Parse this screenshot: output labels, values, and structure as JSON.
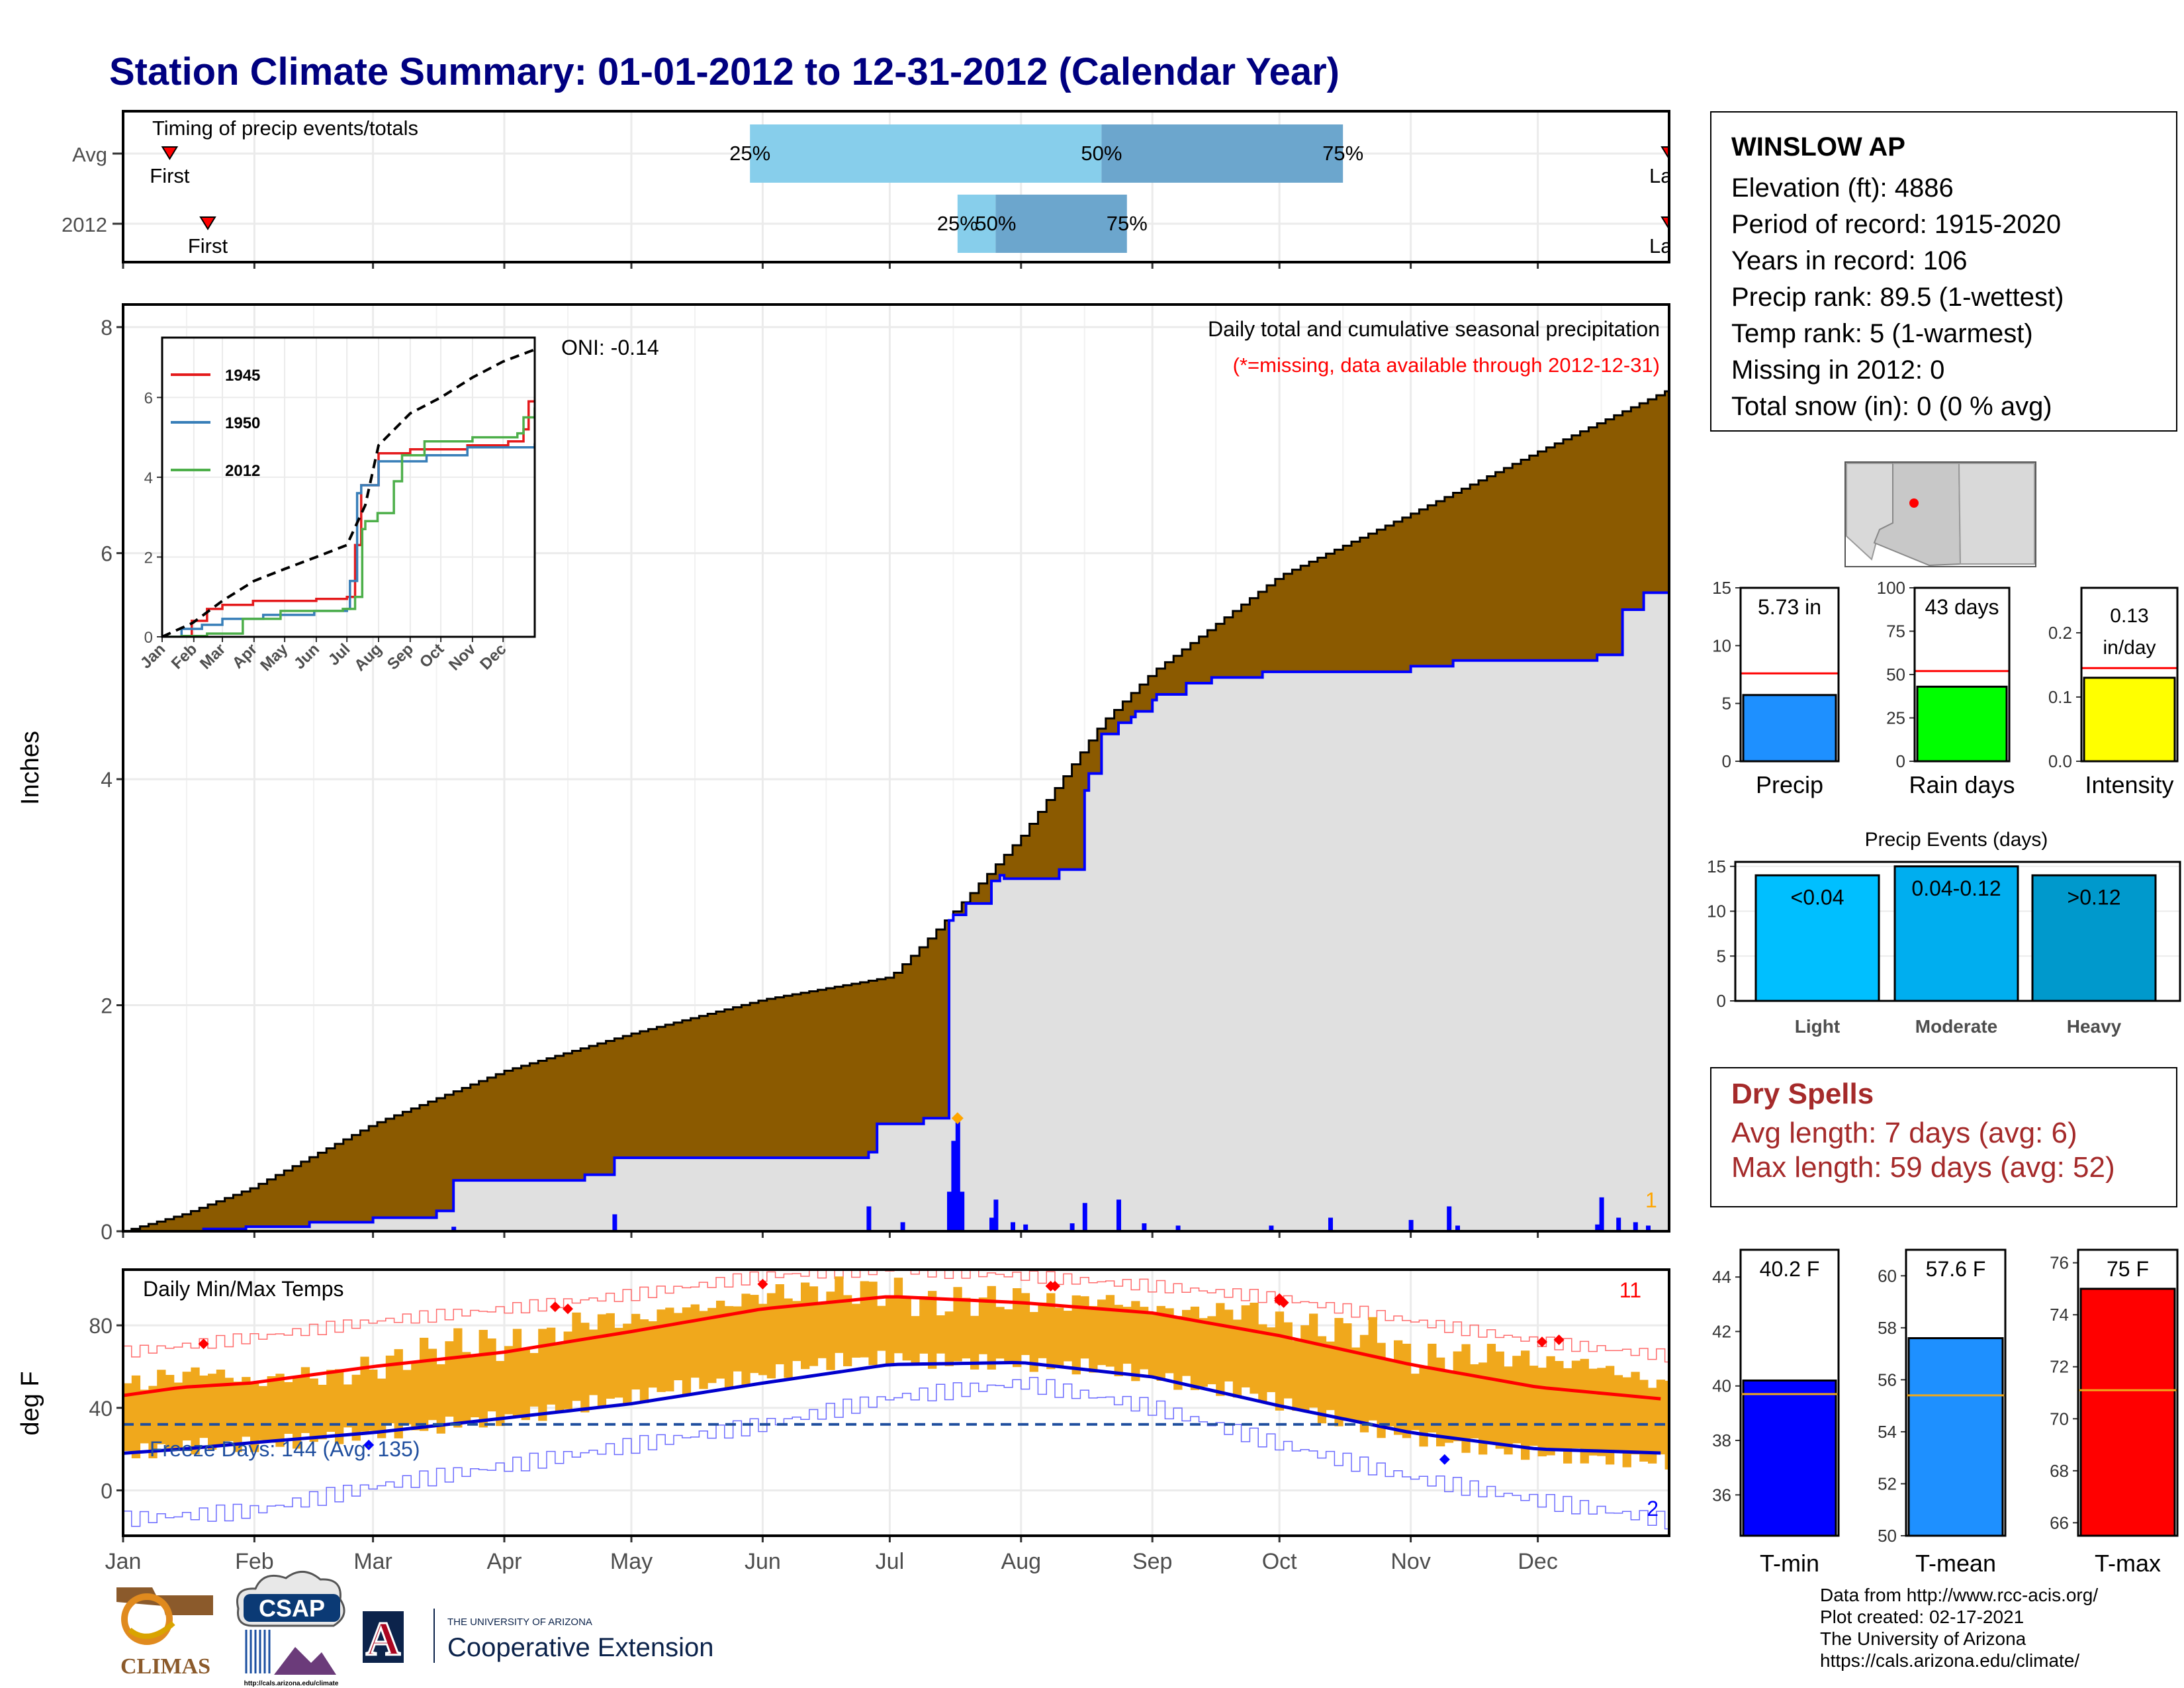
{
  "title": "Station Climate Summary: 01-01-2012 to 12-31-2012 (Calendar Year)",
  "months": [
    "Jan",
    "Feb",
    "Mar",
    "Apr",
    "May",
    "Jun",
    "Jul",
    "Aug",
    "Sep",
    "Oct",
    "Nov",
    "Dec"
  ],
  "station": {
    "name": "WINSLOW AP",
    "lines": [
      "Elevation (ft): 4886",
      "Period of record: 1915-2020",
      "Years in record: 106",
      "Precip rank: 89.5 (1-wettest)",
      "Temp rank: 5 (1-warmest)",
      "Missing in 2012: 0",
      "Total snow (in): 0 (0 % avg)"
    ]
  },
  "dry_spells": {
    "title": "Dry Spells",
    "avg_length": "Avg length: 7 days (avg: 6)",
    "max_length": "Max length: 59 days (avg: 52)"
  },
  "credits": [
    "Data from http://www.rcc-acis.org/",
    "Plot created: 02-17-2021",
    "The University of Arizona",
    "https://cals.arizona.edu/climate/"
  ],
  "logos": {
    "climas": "CLIMAS",
    "csap": "CSAP",
    "csap_url": "http://cals.arizona.edu/climate",
    "ua_small": "THE UNIVERSITY OF ARIZONA",
    "ua_big": "Cooperative Extension",
    "ua_mark": "A"
  },
  "colors": {
    "title": "#000080",
    "avg_cum_fill": "#8b5a00",
    "obs_cum_fill": "#e0e0e0",
    "obs_line": "#0000ff",
    "q_light": "#87ceeb",
    "q_dark": "#6ca6cd",
    "precip_bar": "#1e90ff",
    "raindays_bar": "#00ff00",
    "intensity_bar": "#ffff00",
    "events_light": "#00bfff",
    "events_mod": "#00aeef",
    "events_heavy": "#0099cc",
    "tmin_bar": "#0000ff",
    "tmean_bar": "#1e90ff",
    "tmax_bar": "#ff0000",
    "temp_range": "#f0a81c",
    "dry_text": "#a52a2a"
  },
  "chart_data": [
    {
      "id": "timing",
      "type": "bar",
      "title": "Timing of precip events/totals",
      "rows": [
        {
          "label": "Avg",
          "first_doy": 12,
          "last_doy": 391,
          "q25_doy": 149,
          "q50_doy": 232,
          "q75_doy": 289,
          "labels": {
            "first": "First",
            "last": "Last",
            "q25": "25%",
            "q50": "50%",
            "q75": "75%"
          }
        },
        {
          "label": "2012",
          "first_doy": 21,
          "last_doy": 400,
          "q25_doy": 198,
          "q50_doy": 207,
          "q75_doy": 238,
          "labels": {
            "first": "First",
            "last": "Last",
            "q25": "25%",
            "q50": "50%",
            "q75": "75%"
          }
        }
      ]
    },
    {
      "id": "cumulative_precip",
      "type": "area",
      "title": "Daily total and cumulative seasonal precipitation",
      "subtitle": "(*=missing, data available through 2012-12-31)",
      "ylabel": "Inches",
      "ylim": [
        0,
        8.2
      ],
      "yticks": [
        0,
        2,
        4,
        6,
        8
      ],
      "xlim_doy": [
        1,
        366
      ],
      "annotation_oni": "ONI: -0.14",
      "corner_count": "1",
      "avg_cumulative": {
        "doy": [
          1,
          15,
          31,
          60,
          91,
          121,
          152,
          182,
          190,
          200,
          213,
          232,
          244,
          274,
          305,
          335,
          366
        ],
        "inches": [
          0.0,
          0.15,
          0.38,
          0.95,
          1.42,
          1.75,
          2.05,
          2.25,
          2.55,
          2.95,
          3.5,
          4.5,
          4.95,
          5.8,
          6.35,
          6.9,
          7.45
        ]
      },
      "obs_2012_cumulative": {
        "doy": [
          1,
          20,
          30,
          45,
          60,
          75,
          79,
          110,
          117,
          177,
          179,
          190,
          196,
          197,
          200,
          206,
          208,
          209,
          222,
          228,
          229,
          232,
          236,
          239,
          240,
          244,
          245,
          252,
          258,
          270,
          305,
          315,
          349,
          355,
          360,
          366
        ],
        "inches": [
          0.0,
          0.02,
          0.04,
          0.08,
          0.12,
          0.18,
          0.45,
          0.5,
          0.65,
          0.7,
          0.95,
          1.0,
          2.75,
          2.8,
          2.9,
          3.1,
          3.15,
          3.12,
          3.2,
          3.9,
          4.05,
          4.4,
          4.5,
          4.55,
          4.6,
          4.7,
          4.75,
          4.85,
          4.9,
          4.95,
          5.0,
          5.05,
          5.1,
          5.5,
          5.65,
          5.7
        ]
      },
      "daily_bars": {
        "doy": [
          79,
          117,
          177,
          185,
          196,
          197,
          198,
          199,
          206,
          207,
          211,
          214,
          225,
          228,
          236,
          242,
          250,
          272,
          286,
          305,
          314,
          316,
          349,
          350,
          354,
          358,
          361
        ],
        "inches": [
          0.04,
          0.15,
          0.22,
          0.08,
          0.35,
          0.8,
          1.0,
          0.35,
          0.12,
          0.28,
          0.08,
          0.06,
          0.07,
          0.25,
          0.28,
          0.07,
          0.05,
          0.05,
          0.12,
          0.1,
          0.22,
          0.05,
          0.06,
          0.3,
          0.12,
          0.08,
          0.05
        ]
      },
      "max_daily_marker": {
        "doy": 198,
        "inches": 1.0
      },
      "inset": {
        "ylim": [
          0,
          7.5
        ],
        "yticks": [
          0,
          2,
          4,
          6
        ],
        "months": [
          "Jan",
          "Feb",
          "Mar",
          "Apr",
          "May",
          "Jun",
          "Jul",
          "Aug",
          "Sep",
          "Oct",
          "Nov",
          "Dec"
        ],
        "legend": [
          {
            "name": "1945",
            "color": "#e41a1c"
          },
          {
            "name": "1950",
            "color": "#377eb8"
          },
          {
            "name": "2012",
            "color": "#4daf4a"
          }
        ],
        "avg": {
          "doy": [
            1,
            31,
            60,
            91,
            121,
            152,
            182,
            200,
            213,
            244,
            274,
            305,
            335,
            366
          ],
          "inches": [
            0.0,
            0.35,
            0.9,
            1.4,
            1.7,
            2.0,
            2.3,
            3.3,
            4.8,
            5.6,
            6.0,
            6.5,
            6.9,
            7.2
          ]
        },
        "series": [
          {
            "name": "1945",
            "doy": [
              1,
              30,
              45,
              60,
              90,
              152,
              182,
              190,
              196,
              213,
              244,
              300,
              340,
              355,
              360,
              366
            ],
            "inches": [
              0.0,
              0.4,
              0.7,
              0.8,
              0.9,
              0.95,
              1.0,
              2.3,
              3.8,
              4.6,
              4.7,
              4.8,
              4.9,
              5.2,
              5.9,
              5.9
            ]
          },
          {
            "name": "1950",
            "doy": [
              1,
              20,
              40,
              60,
              100,
              150,
              182,
              185,
              192,
              196,
              213,
              260,
              300,
              366
            ],
            "inches": [
              0.0,
              0.2,
              0.3,
              0.45,
              0.55,
              0.65,
              0.7,
              1.4,
              3.6,
              3.8,
              4.4,
              4.55,
              4.75,
              4.85
            ]
          },
          {
            "name": "2012",
            "doy": [
              1,
              20,
              45,
              80,
              117,
              178,
              190,
              197,
              200,
              212,
              228,
              236,
              258,
              305,
              349,
              355,
              366
            ],
            "inches": [
              0.0,
              0.02,
              0.08,
              0.45,
              0.65,
              0.7,
              1.0,
              2.7,
              2.9,
              3.1,
              3.9,
              4.55,
              4.9,
              5.0,
              5.1,
              5.5,
              5.75
            ]
          }
        ]
      }
    },
    {
      "id": "daily_temps",
      "type": "area",
      "title": "Daily Min/Max Temps",
      "ylabel": "deg F",
      "ylim": [
        -22,
        107
      ],
      "yticks": [
        0,
        40,
        80
      ],
      "freeze_line_f": 32,
      "freeze_text": "Freeze Days: 144 (Avg: 135)",
      "record_high_count": "11",
      "record_low_count": "2",
      "avg_max": {
        "doy": [
          1,
          15,
          31,
          60,
          91,
          121,
          152,
          182,
          213,
          244,
          274,
          305,
          335,
          366
        ],
        "degf": [
          46,
          50,
          52,
          60,
          67,
          77,
          88,
          94,
          91,
          86,
          75,
          61,
          50,
          44
        ]
      },
      "avg_min": {
        "doy": [
          1,
          15,
          31,
          60,
          91,
          121,
          152,
          182,
          213,
          244,
          274,
          305,
          335,
          366
        ],
        "degf": [
          18,
          20,
          23,
          28,
          35,
          42,
          52,
          61,
          62,
          55,
          41,
          28,
          20,
          18
        ]
      },
      "record_max": {
        "doy": [
          1,
          31,
          60,
          91,
          121,
          152,
          182,
          213,
          244,
          274,
          305,
          335,
          366
        ],
        "degf": [
          67,
          74,
          82,
          88,
          95,
          104,
          107,
          104,
          99,
          93,
          82,
          72,
          65
        ]
      },
      "record_min": {
        "doy": [
          1,
          31,
          60,
          91,
          121,
          152,
          182,
          213,
          244,
          274,
          305,
          335,
          366
        ],
        "degf": [
          -14,
          -10,
          2,
          12,
          22,
          32,
          45,
          52,
          40,
          22,
          6,
          -5,
          -15
        ]
      },
      "obs_2012": {
        "doy": [
          1,
          10,
          20,
          31,
          40,
          50,
          60,
          70,
          80,
          91,
          100,
          110,
          121,
          130,
          140,
          152,
          160,
          170,
          182,
          190,
          200,
          213,
          220,
          230,
          244,
          255,
          265,
          274,
          285,
          295,
          305,
          315,
          325,
          335,
          345,
          355,
          366
        ],
        "tmax": [
          50,
          55,
          58,
          52,
          56,
          55,
          60,
          66,
          72,
          70,
          74,
          83,
          82,
          88,
          89,
          95,
          96,
          97,
          96,
          90,
          92,
          93,
          90,
          93,
          88,
          86,
          88,
          80,
          78,
          76,
          63,
          65,
          66,
          62,
          62,
          56,
          50
        ],
        "tmin": [
          18,
          20,
          22,
          22,
          24,
          26,
          28,
          30,
          33,
          35,
          38,
          42,
          45,
          50,
          52,
          56,
          60,
          63,
          64,
          63,
          62,
          62,
          60,
          60,
          55,
          50,
          48,
          42,
          35,
          30,
          26,
          22,
          20,
          18,
          16,
          15,
          14
        ]
      },
      "record_high_days": [
        {
          "doy": 20,
          "degf": 71
        },
        {
          "doy": 103,
          "degf": 89
        },
        {
          "doy": 106,
          "degf": 88
        },
        {
          "doy": 152,
          "degf": 100
        },
        {
          "doy": 220,
          "degf": 99
        },
        {
          "doy": 221,
          "degf": 99
        },
        {
          "doy": 274,
          "degf": 92
        },
        {
          "doy": 275,
          "degf": 91
        },
        {
          "doy": 336,
          "degf": 72
        },
        {
          "doy": 340,
          "degf": 73
        },
        {
          "doy": 274,
          "degf": 93
        }
      ],
      "record_low_days": [
        {
          "doy": 59,
          "degf": 22
        },
        {
          "doy": 313,
          "degf": 15
        }
      ]
    },
    {
      "id": "precip_total",
      "type": "bar",
      "label": "Precip",
      "value_text": "5.73 in",
      "value": 5.73,
      "avg": 7.6,
      "ylim": [
        0,
        15
      ],
      "yticks": [
        0,
        5,
        10,
        15
      ]
    },
    {
      "id": "rain_days",
      "type": "bar",
      "label": "Rain days",
      "value_text": "43 days",
      "value": 43,
      "avg": 52,
      "ylim": [
        0,
        100
      ],
      "yticks": [
        0,
        25,
        50,
        75,
        100
      ]
    },
    {
      "id": "intensity",
      "type": "bar",
      "label": "Intensity",
      "value_text_1": "0.13",
      "value_text_2": "in/day",
      "value": 0.13,
      "avg": 0.145,
      "ylim": [
        0,
        0.27
      ],
      "yticks": [
        0.0,
        0.1,
        0.2
      ],
      "ytick_labels": [
        "0.0",
        "0.1",
        "0.2"
      ]
    },
    {
      "id": "precip_events",
      "type": "bar",
      "title": "Precip Events (days)",
      "categories": [
        "Light",
        "Moderate",
        "Heavy"
      ],
      "bar_labels": [
        "<0.04",
        "0.04-0.12",
        ">0.12"
      ],
      "values": [
        14,
        15,
        14
      ],
      "ylim": [
        0,
        15.5
      ],
      "yticks": [
        0,
        5,
        10,
        15
      ]
    },
    {
      "id": "tmin",
      "type": "bar",
      "label": "T-min",
      "value_text": "40.2 F",
      "value": 40.2,
      "avg": 39.7,
      "ylim": [
        34.5,
        45
      ],
      "yticks": [
        36,
        38,
        40,
        42,
        44
      ]
    },
    {
      "id": "tmean",
      "type": "bar",
      "label": "T-mean",
      "value_text": "57.6 F",
      "value": 57.6,
      "avg": 55.4,
      "ylim": [
        50,
        61
      ],
      "yticks": [
        50,
        52,
        54,
        56,
        58,
        60
      ]
    },
    {
      "id": "tmax",
      "type": "bar",
      "label": "T-max",
      "value_text": "75 F",
      "value": 75.0,
      "avg": 71.1,
      "ylim": [
        65.5,
        76.5
      ],
      "yticks": [
        66,
        68,
        70,
        72,
        74,
        76
      ]
    }
  ]
}
